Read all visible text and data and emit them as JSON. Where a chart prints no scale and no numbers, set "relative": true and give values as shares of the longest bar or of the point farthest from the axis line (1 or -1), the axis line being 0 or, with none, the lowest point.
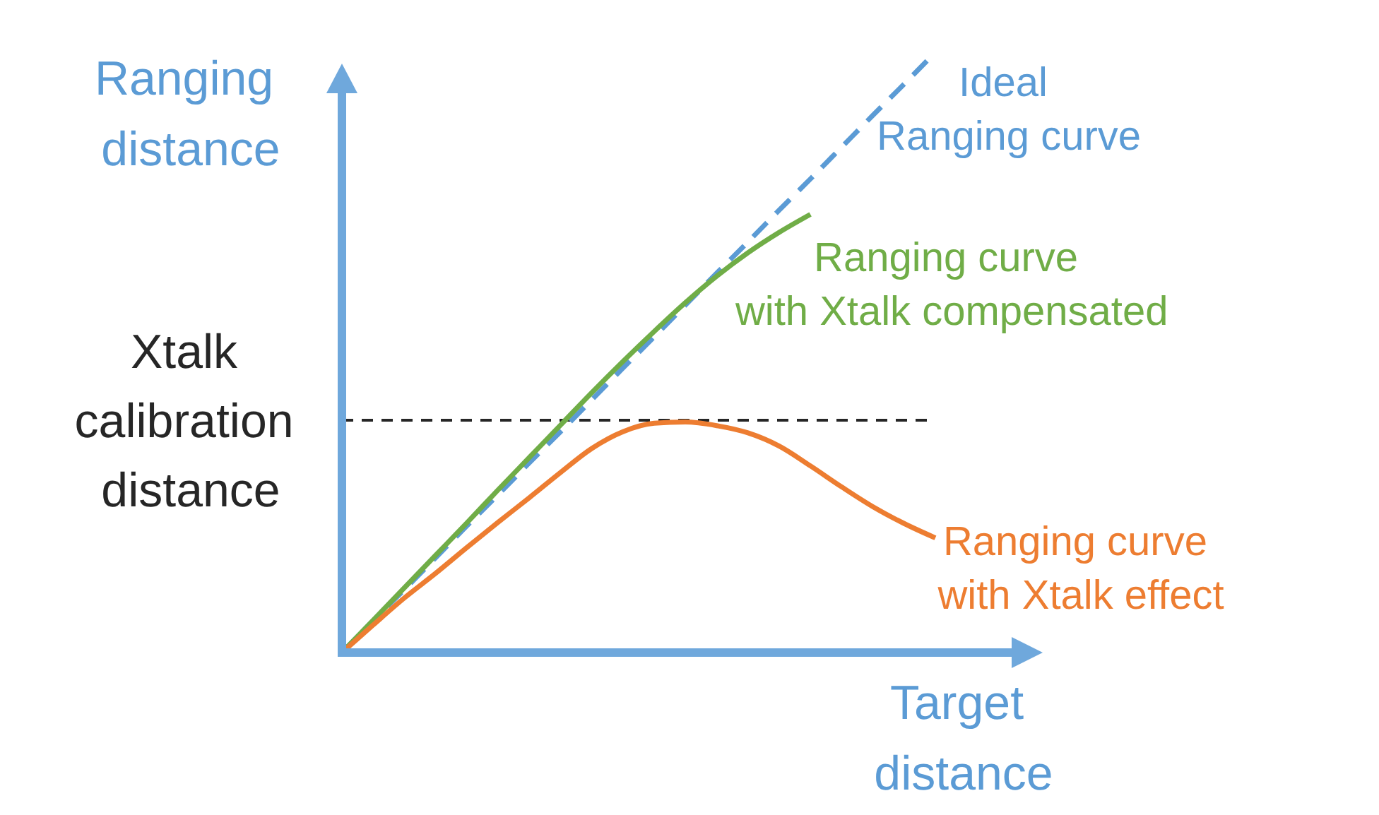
{
  "chart_data": {
    "type": "line",
    "relative": true,
    "xlabel": "Target\ndistance",
    "ylabel": "Ranging\ndistance",
    "categories": [
      null,
      null,
      null,
      null,
      null,
      null,
      null,
      null,
      null,
      null,
      null,
      null,
      null,
      null,
      null,
      null,
      null,
      null,
      null,
      null
    ],
    "series": [
      {
        "name": "Ideal\nRanging curve",
        "color": "#5b9bd5",
        "line_style": "dashed",
        "values": [
          0,
          0.053,
          0.105,
          0.158,
          0.211,
          0.263,
          0.316,
          0.368,
          0.421,
          0.474,
          0.526,
          0.579,
          0.632,
          0.684,
          0.737,
          0.789,
          0.842,
          0.895,
          0.947,
          1
        ]
      },
      {
        "name": "Ranging curve\nwith Xtalk compensated",
        "color": "#70ad47",
        "values": [
          0,
          0.054,
          0.108,
          0.162,
          0.216,
          0.271,
          0.325,
          0.379,
          0.433,
          0.485,
          0.535,
          0.583,
          0.627,
          0.666,
          0.7,
          0.73,
          null,
          null,
          null,
          null
        ]
      },
      {
        "name": "Ranging curve\nwith Xtalk effect",
        "color": "#ed7d31",
        "values": [
          0,
          0.046,
          0.091,
          0.132,
          0.175,
          0.217,
          0.258,
          0.3,
          0.34,
          0.368,
          0.382,
          0.384,
          0.378,
          0.366,
          0.344,
          0.311,
          0.276,
          0.243,
          0.215,
          0.191
        ]
      }
    ],
    "ref_lines": [
      {
        "axis": "y",
        "value": 0.387,
        "label": "Xtalk\ncalibration\ndistance",
        "color": "#262626",
        "line_style": "dashed"
      }
    ]
  }
}
